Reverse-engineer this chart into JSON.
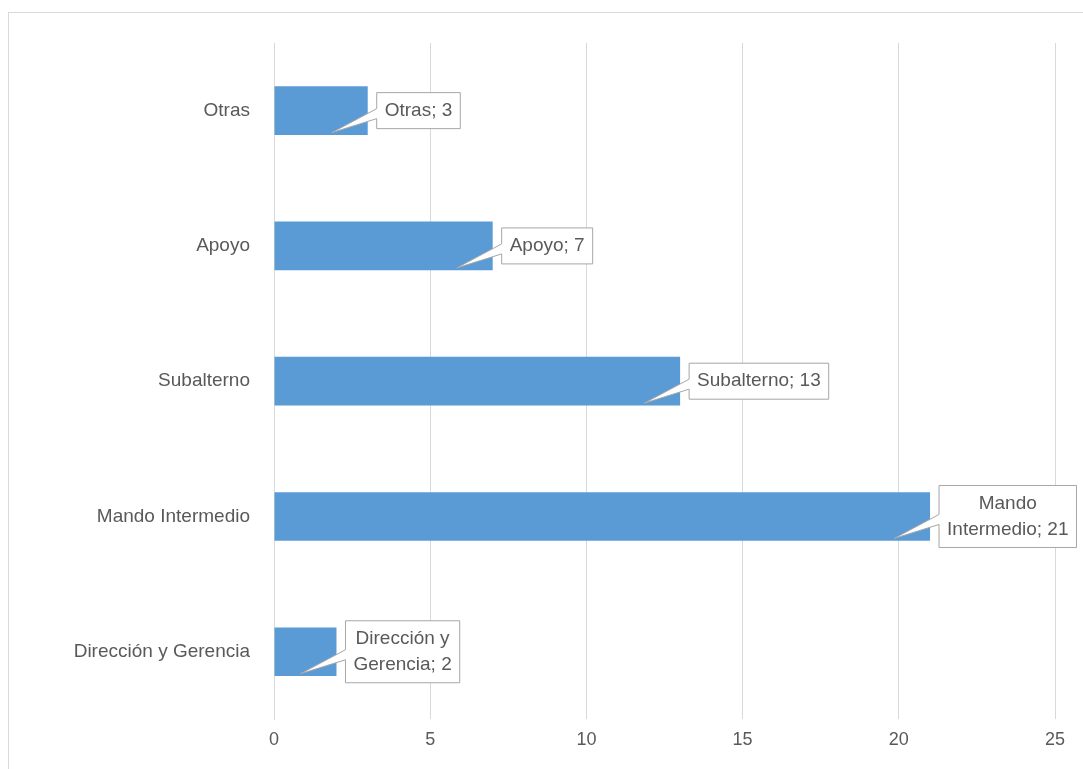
{
  "chart_data": {
    "type": "bar",
    "orientation": "horizontal",
    "categories": [
      "Otras",
      "Apoyo",
      "Subalterno",
      "Mando Intermedio",
      "Dirección y Gerencia"
    ],
    "values": [
      3,
      7,
      13,
      21,
      2
    ],
    "value_labels": [
      "Otras; 3",
      "Apoyo; 7",
      "Subalterno; 13",
      "Mando Intermedio; 21",
      "Dirección y Gerencia; 2"
    ],
    "color": "#5b9bd5",
    "xlim": [
      0,
      25
    ],
    "xticks": [
      0,
      5,
      10,
      15,
      20,
      25
    ],
    "grid": "x",
    "legend": false
  }
}
